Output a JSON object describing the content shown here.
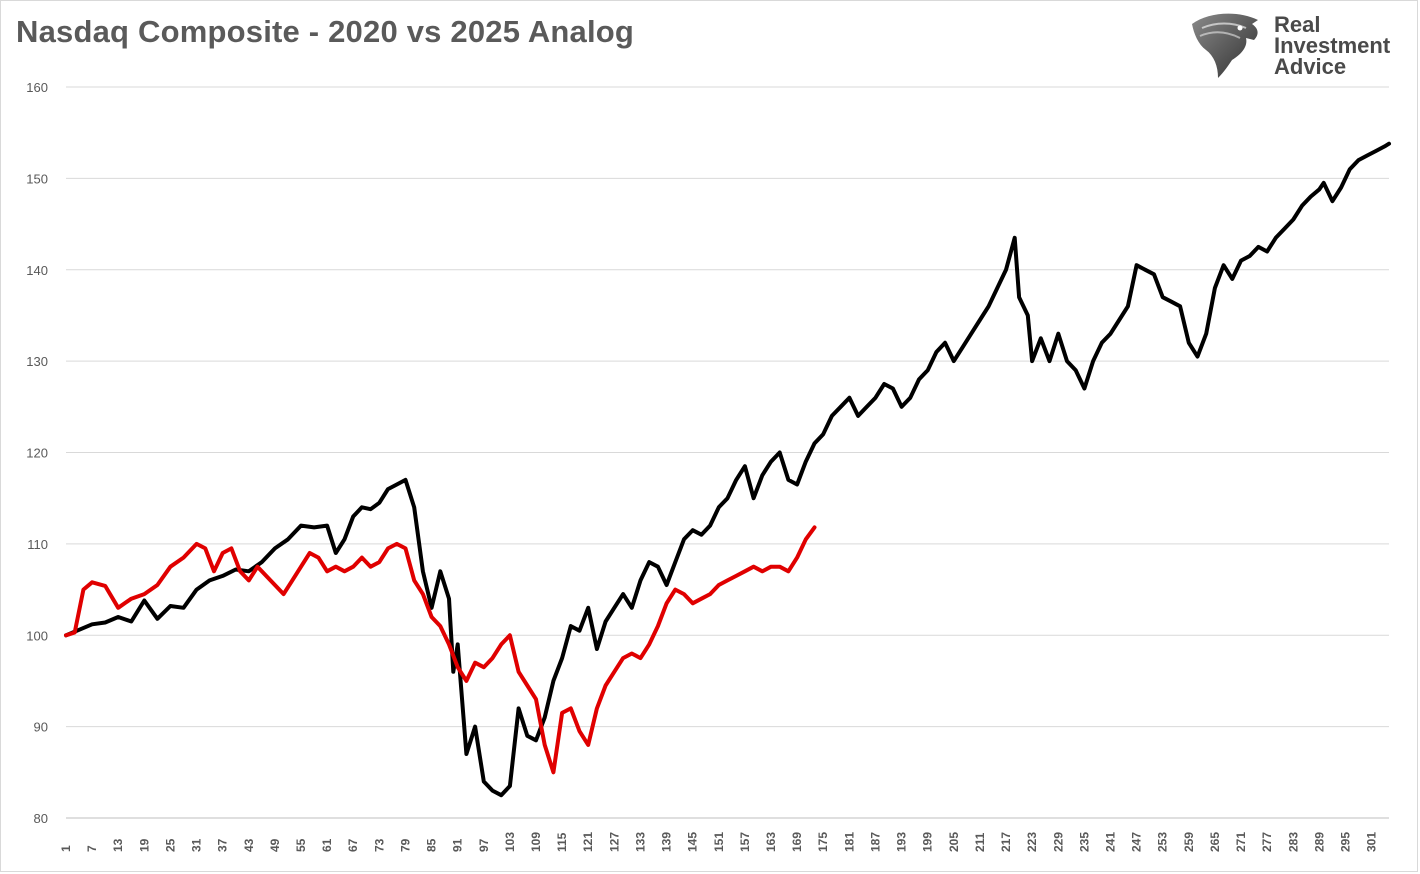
{
  "title": "Nasdaq Composite - 2020 vs 2025 Analog",
  "logo": {
    "lines": [
      "Real",
      "Investment",
      "Advice"
    ],
    "icon": "eagle-head-icon"
  },
  "chart_data": {
    "type": "line",
    "title": "Nasdaq Composite - 2020 vs 2025 Analog",
    "xlabel": "",
    "ylabel": "",
    "ylim": [
      80,
      160
    ],
    "yticks": [
      80,
      90,
      100,
      110,
      120,
      130,
      140,
      150,
      160
    ],
    "xlim": [
      1,
      305
    ],
    "xticks": [
      1,
      7,
      13,
      19,
      25,
      31,
      37,
      43,
      49,
      55,
      61,
      67,
      73,
      79,
      85,
      91,
      97,
      103,
      109,
      115,
      121,
      127,
      133,
      139,
      145,
      151,
      157,
      163,
      169,
      175,
      181,
      187,
      193,
      199,
      205,
      211,
      217,
      223,
      229,
      235,
      241,
      247,
      253,
      259,
      265,
      271,
      277,
      283,
      289,
      295,
      301
    ],
    "grid": true,
    "legend": "none",
    "series": [
      {
        "color": "#000000",
        "points": [
          [
            1,
            100
          ],
          [
            4,
            100.6
          ],
          [
            7,
            101.2
          ],
          [
            10,
            101.4
          ],
          [
            13,
            102
          ],
          [
            16,
            101.5
          ],
          [
            19,
            103.8
          ],
          [
            22,
            101.8
          ],
          [
            25,
            103.2
          ],
          [
            28,
            103
          ],
          [
            31,
            105
          ],
          [
            34,
            106
          ],
          [
            37,
            106.5
          ],
          [
            40,
            107.2
          ],
          [
            43,
            107
          ],
          [
            46,
            108
          ],
          [
            49,
            109.5
          ],
          [
            52,
            110.5
          ],
          [
            55,
            112
          ],
          [
            58,
            111.8
          ],
          [
            61,
            112
          ],
          [
            63,
            109
          ],
          [
            65,
            110.5
          ],
          [
            67,
            113
          ],
          [
            69,
            114
          ],
          [
            71,
            113.8
          ],
          [
            73,
            114.5
          ],
          [
            75,
            116
          ],
          [
            77,
            116.5
          ],
          [
            79,
            117
          ],
          [
            81,
            114
          ],
          [
            83,
            107
          ],
          [
            85,
            103
          ],
          [
            87,
            107
          ],
          [
            89,
            104
          ],
          [
            90,
            96
          ],
          [
            91,
            99
          ],
          [
            93,
            87
          ],
          [
            95,
            90
          ],
          [
            97,
            84
          ],
          [
            99,
            83
          ],
          [
            101,
            82.5
          ],
          [
            103,
            83.5
          ],
          [
            105,
            92
          ],
          [
            107,
            89
          ],
          [
            109,
            88.5
          ],
          [
            111,
            91
          ],
          [
            113,
            95
          ],
          [
            115,
            97.5
          ],
          [
            117,
            101
          ],
          [
            119,
            100.5
          ],
          [
            121,
            103
          ],
          [
            123,
            98.5
          ],
          [
            125,
            101.5
          ],
          [
            127,
            103
          ],
          [
            129,
            104.5
          ],
          [
            131,
            103
          ],
          [
            133,
            106
          ],
          [
            135,
            108
          ],
          [
            137,
            107.5
          ],
          [
            139,
            105.5
          ],
          [
            141,
            108
          ],
          [
            143,
            110.5
          ],
          [
            145,
            111.5
          ],
          [
            147,
            111
          ],
          [
            149,
            112
          ],
          [
            151,
            114
          ],
          [
            153,
            115
          ],
          [
            155,
            117
          ],
          [
            157,
            118.5
          ],
          [
            159,
            115
          ],
          [
            161,
            117.5
          ],
          [
            163,
            119
          ],
          [
            165,
            120
          ],
          [
            167,
            117
          ],
          [
            169,
            116.5
          ],
          [
            171,
            119
          ],
          [
            173,
            121
          ],
          [
            175,
            122
          ],
          [
            177,
            124
          ],
          [
            179,
            125
          ],
          [
            181,
            126
          ],
          [
            183,
            124
          ],
          [
            185,
            125
          ],
          [
            187,
            126
          ],
          [
            189,
            127.5
          ],
          [
            191,
            127
          ],
          [
            193,
            125
          ],
          [
            195,
            126
          ],
          [
            197,
            128
          ],
          [
            199,
            129
          ],
          [
            201,
            131
          ],
          [
            203,
            132
          ],
          [
            205,
            130
          ],
          [
            207,
            131.5
          ],
          [
            209,
            133
          ],
          [
            211,
            134.5
          ],
          [
            213,
            136
          ],
          [
            215,
            138
          ],
          [
            217,
            140
          ],
          [
            219,
            143.5
          ],
          [
            220,
            137
          ],
          [
            222,
            135
          ],
          [
            223,
            130
          ],
          [
            225,
            132.5
          ],
          [
            227,
            130
          ],
          [
            229,
            133
          ],
          [
            231,
            130
          ],
          [
            233,
            129
          ],
          [
            235,
            127
          ],
          [
            237,
            130
          ],
          [
            239,
            132
          ],
          [
            241,
            133
          ],
          [
            243,
            134.5
          ],
          [
            245,
            136
          ],
          [
            247,
            140.5
          ],
          [
            249,
            140
          ],
          [
            251,
            139.5
          ],
          [
            253,
            137
          ],
          [
            255,
            136.5
          ],
          [
            257,
            136
          ],
          [
            259,
            132
          ],
          [
            261,
            130.5
          ],
          [
            263,
            133
          ],
          [
            265,
            138
          ],
          [
            267,
            140.5
          ],
          [
            269,
            139
          ],
          [
            271,
            141
          ],
          [
            273,
            141.5
          ],
          [
            275,
            142.5
          ],
          [
            277,
            142
          ],
          [
            279,
            143.5
          ],
          [
            281,
            144.5
          ],
          [
            283,
            145.5
          ],
          [
            285,
            147
          ],
          [
            287,
            148
          ],
          [
            289,
            148.8
          ],
          [
            290,
            149.5
          ],
          [
            292,
            147.5
          ],
          [
            294,
            149
          ],
          [
            296,
            151
          ],
          [
            298,
            152
          ],
          [
            300,
            152.5
          ],
          [
            302,
            153
          ],
          [
            304,
            153.5
          ],
          [
            305,
            153.8
          ]
        ]
      },
      {
        "color": "#e00000",
        "points": [
          [
            1,
            100
          ],
          [
            3,
            100.3
          ],
          [
            5,
            105
          ],
          [
            7,
            105.8
          ],
          [
            10,
            105.4
          ],
          [
            13,
            103
          ],
          [
            16,
            104
          ],
          [
            19,
            104.5
          ],
          [
            22,
            105.5
          ],
          [
            25,
            107.5
          ],
          [
            28,
            108.5
          ],
          [
            31,
            110
          ],
          [
            33,
            109.5
          ],
          [
            35,
            107
          ],
          [
            37,
            109
          ],
          [
            39,
            109.5
          ],
          [
            41,
            107
          ],
          [
            43,
            106
          ],
          [
            45,
            107.5
          ],
          [
            47,
            106.5
          ],
          [
            49,
            105.5
          ],
          [
            51,
            104.5
          ],
          [
            53,
            106
          ],
          [
            55,
            107.5
          ],
          [
            57,
            109
          ],
          [
            59,
            108.5
          ],
          [
            61,
            107
          ],
          [
            63,
            107.5
          ],
          [
            65,
            107
          ],
          [
            67,
            107.5
          ],
          [
            69,
            108.5
          ],
          [
            71,
            107.5
          ],
          [
            73,
            108
          ],
          [
            75,
            109.5
          ],
          [
            77,
            110
          ],
          [
            79,
            109.5
          ],
          [
            81,
            106
          ],
          [
            83,
            104.5
          ],
          [
            85,
            102
          ],
          [
            87,
            101
          ],
          [
            89,
            99
          ],
          [
            91,
            96.5
          ],
          [
            93,
            95
          ],
          [
            95,
            97
          ],
          [
            97,
            96.5
          ],
          [
            99,
            97.5
          ],
          [
            101,
            99
          ],
          [
            103,
            100
          ],
          [
            105,
            96
          ],
          [
            107,
            94.5
          ],
          [
            109,
            93
          ],
          [
            111,
            88
          ],
          [
            113,
            85
          ],
          [
            115,
            91.5
          ],
          [
            117,
            92
          ],
          [
            119,
            89.5
          ],
          [
            121,
            88
          ],
          [
            123,
            92
          ],
          [
            125,
            94.5
          ],
          [
            127,
            96
          ],
          [
            129,
            97.5
          ],
          [
            131,
            98
          ],
          [
            133,
            97.5
          ],
          [
            135,
            99
          ],
          [
            137,
            101
          ],
          [
            139,
            103.5
          ],
          [
            141,
            105
          ],
          [
            143,
            104.5
          ],
          [
            145,
            103.5
          ],
          [
            147,
            104
          ],
          [
            149,
            104.5
          ],
          [
            151,
            105.5
          ],
          [
            153,
            106
          ],
          [
            155,
            106.5
          ],
          [
            157,
            107
          ],
          [
            159,
            107.5
          ],
          [
            161,
            107
          ],
          [
            163,
            107.5
          ],
          [
            165,
            107.5
          ],
          [
            167,
            107
          ],
          [
            169,
            108.5
          ],
          [
            171,
            110.5
          ],
          [
            173,
            111.8
          ]
        ]
      }
    ]
  }
}
